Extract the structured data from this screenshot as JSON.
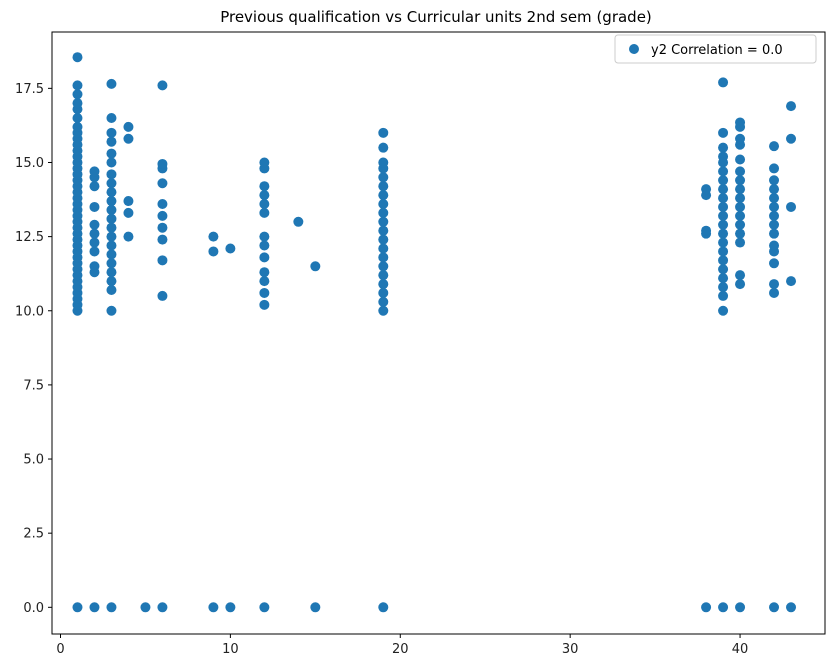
{
  "chart_data": {
    "type": "scatter",
    "title": "Previous qualification vs Curricular units 2nd sem (grade)",
    "xlabel": "",
    "ylabel": "",
    "xlim": [
      -0.5,
      45.0
    ],
    "ylim": [
      -0.9,
      19.4
    ],
    "x_ticks": [
      0,
      10,
      20,
      30,
      40
    ],
    "y_ticks": [
      0.0,
      2.5,
      5.0,
      7.5,
      10.0,
      12.5,
      15.0,
      17.5
    ],
    "x_tick_labels": [
      "0",
      "10",
      "20",
      "30",
      "40"
    ],
    "y_tick_labels": [
      "0.0",
      "2.5",
      "5.0",
      "7.5",
      "10.0",
      "12.5",
      "15.0",
      "17.5"
    ],
    "grid": false,
    "legend_position": "top-right",
    "marker_color": "#1f77b4",
    "series": [
      {
        "name": "y2 Correlation = 0.0",
        "points": [
          [
            1,
            0
          ],
          [
            1,
            10.0
          ],
          [
            1,
            10.2
          ],
          [
            1,
            10.4
          ],
          [
            1,
            10.6
          ],
          [
            1,
            10.8
          ],
          [
            1,
            11.0
          ],
          [
            1,
            11.2
          ],
          [
            1,
            11.4
          ],
          [
            1,
            11.6
          ],
          [
            1,
            11.8
          ],
          [
            1,
            12.0
          ],
          [
            1,
            12.2
          ],
          [
            1,
            12.4
          ],
          [
            1,
            12.6
          ],
          [
            1,
            12.8
          ],
          [
            1,
            13.0
          ],
          [
            1,
            13.2
          ],
          [
            1,
            13.4
          ],
          [
            1,
            13.6
          ],
          [
            1,
            13.8
          ],
          [
            1,
            14.0
          ],
          [
            1,
            14.2
          ],
          [
            1,
            14.4
          ],
          [
            1,
            14.6
          ],
          [
            1,
            14.8
          ],
          [
            1,
            15.0
          ],
          [
            1,
            15.2
          ],
          [
            1,
            15.4
          ],
          [
            1,
            15.6
          ],
          [
            1,
            15.8
          ],
          [
            1,
            16.0
          ],
          [
            1,
            16.2
          ],
          [
            1,
            16.5
          ],
          [
            1,
            16.8
          ],
          [
            1,
            17.0
          ],
          [
            1,
            17.3
          ],
          [
            1,
            17.6
          ],
          [
            1,
            18.55
          ],
          [
            2,
            0
          ],
          [
            2,
            11.3
          ],
          [
            2,
            11.5
          ],
          [
            2,
            12.0
          ],
          [
            2,
            12.3
          ],
          [
            2,
            12.6
          ],
          [
            2,
            12.9
          ],
          [
            2,
            13.5
          ],
          [
            2,
            14.2
          ],
          [
            2,
            14.5
          ],
          [
            2,
            14.7
          ],
          [
            3,
            0
          ],
          [
            3,
            10.0
          ],
          [
            3,
            10.7
          ],
          [
            3,
            11.0
          ],
          [
            3,
            11.3
          ],
          [
            3,
            11.6
          ],
          [
            3,
            11.9
          ],
          [
            3,
            12.2
          ],
          [
            3,
            12.5
          ],
          [
            3,
            12.8
          ],
          [
            3,
            13.1
          ],
          [
            3,
            13.4
          ],
          [
            3,
            13.7
          ],
          [
            3,
            14.0
          ],
          [
            3,
            14.3
          ],
          [
            3,
            14.6
          ],
          [
            3,
            15.0
          ],
          [
            3,
            15.3
          ],
          [
            3,
            15.7
          ],
          [
            3,
            16.0
          ],
          [
            3,
            16.5
          ],
          [
            3,
            17.65
          ],
          [
            4,
            12.5
          ],
          [
            4,
            13.3
          ],
          [
            4,
            13.7
          ],
          [
            4,
            15.8
          ],
          [
            4,
            16.2
          ],
          [
            5,
            0
          ],
          [
            6,
            0
          ],
          [
            6,
            10.5
          ],
          [
            6,
            11.7
          ],
          [
            6,
            12.4
          ],
          [
            6,
            12.8
          ],
          [
            6,
            13.2
          ],
          [
            6,
            13.6
          ],
          [
            6,
            14.3
          ],
          [
            6,
            14.8
          ],
          [
            6,
            14.95
          ],
          [
            6,
            17.6
          ],
          [
            9,
            0
          ],
          [
            9,
            12.0
          ],
          [
            9,
            12.5
          ],
          [
            10,
            0
          ],
          [
            10,
            12.1
          ],
          [
            12,
            0
          ],
          [
            12,
            10.2
          ],
          [
            12,
            10.6
          ],
          [
            12,
            11.0
          ],
          [
            12,
            11.3
          ],
          [
            12,
            11.8
          ],
          [
            12,
            12.2
          ],
          [
            12,
            12.5
          ],
          [
            12,
            13.3
          ],
          [
            12,
            13.6
          ],
          [
            12,
            13.9
          ],
          [
            12,
            14.2
          ],
          [
            12,
            14.8
          ],
          [
            12,
            15.0
          ],
          [
            14,
            13.0
          ],
          [
            15,
            0
          ],
          [
            15,
            11.5
          ],
          [
            19,
            0
          ],
          [
            19,
            10.0
          ],
          [
            19,
            10.3
          ],
          [
            19,
            10.6
          ],
          [
            19,
            10.9
          ],
          [
            19,
            11.2
          ],
          [
            19,
            11.5
          ],
          [
            19,
            11.8
          ],
          [
            19,
            12.1
          ],
          [
            19,
            12.4
          ],
          [
            19,
            12.7
          ],
          [
            19,
            13.0
          ],
          [
            19,
            13.3
          ],
          [
            19,
            13.6
          ],
          [
            19,
            13.9
          ],
          [
            19,
            14.2
          ],
          [
            19,
            14.5
          ],
          [
            19,
            14.8
          ],
          [
            19,
            15.0
          ],
          [
            19,
            15.5
          ],
          [
            19,
            16.0
          ],
          [
            38,
            0
          ],
          [
            38,
            12.6
          ],
          [
            38,
            12.7
          ],
          [
            38,
            13.9
          ],
          [
            38,
            14.1
          ],
          [
            39,
            0
          ],
          [
            39,
            10.0
          ],
          [
            39,
            10.5
          ],
          [
            39,
            10.8
          ],
          [
            39,
            11.1
          ],
          [
            39,
            11.4
          ],
          [
            39,
            11.7
          ],
          [
            39,
            12.0
          ],
          [
            39,
            12.3
          ],
          [
            39,
            12.6
          ],
          [
            39,
            12.9
          ],
          [
            39,
            13.2
          ],
          [
            39,
            13.5
          ],
          [
            39,
            13.8
          ],
          [
            39,
            14.1
          ],
          [
            39,
            14.4
          ],
          [
            39,
            14.7
          ],
          [
            39,
            15.0
          ],
          [
            39,
            15.2
          ],
          [
            39,
            15.5
          ],
          [
            39,
            16.0
          ],
          [
            39,
            17.7
          ],
          [
            40,
            0
          ],
          [
            40,
            10.9
          ],
          [
            40,
            11.2
          ],
          [
            40,
            12.3
          ],
          [
            40,
            12.6
          ],
          [
            40,
            12.9
          ],
          [
            40,
            13.2
          ],
          [
            40,
            13.5
          ],
          [
            40,
            13.8
          ],
          [
            40,
            14.1
          ],
          [
            40,
            14.4
          ],
          [
            40,
            14.7
          ],
          [
            40,
            15.1
          ],
          [
            40,
            15.6
          ],
          [
            40,
            15.8
          ],
          [
            40,
            16.2
          ],
          [
            40,
            16.35
          ],
          [
            42,
            0
          ],
          [
            42,
            10.6
          ],
          [
            42,
            10.9
          ],
          [
            42,
            11.6
          ],
          [
            42,
            12.0
          ],
          [
            42,
            12.2
          ],
          [
            42,
            12.6
          ],
          [
            42,
            12.9
          ],
          [
            42,
            13.2
          ],
          [
            42,
            13.5
          ],
          [
            42,
            13.8
          ],
          [
            42,
            14.1
          ],
          [
            42,
            14.4
          ],
          [
            42,
            14.8
          ],
          [
            42,
            15.55
          ],
          [
            43,
            0
          ],
          [
            43,
            11.0
          ],
          [
            43,
            13.5
          ],
          [
            43,
            15.8
          ],
          [
            43,
            16.9
          ]
        ]
      }
    ]
  }
}
